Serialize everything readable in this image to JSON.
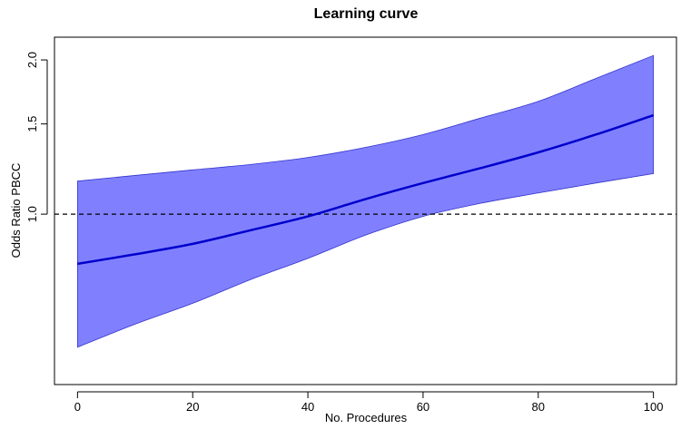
{
  "chart_data": {
    "type": "line",
    "title": "Learning curve",
    "xlabel": "No. Procedures",
    "ylabel": "Odds Ratio PBCC",
    "xlim": [
      -4,
      104
    ],
    "ylim": [
      0.465,
      2.215
    ],
    "y_scale": "log",
    "x_ticks": [
      0,
      20,
      40,
      60,
      80,
      100
    ],
    "x_tick_labels": [
      "0",
      "20",
      "40",
      "60",
      "80",
      "100"
    ],
    "y_ticks": [
      1.0,
      1.5,
      2.0
    ],
    "y_tick_labels": [
      "1.0",
      "1.5",
      "2.0"
    ],
    "reference_line": {
      "y": 1.0,
      "style": "dashed"
    },
    "grid": false,
    "legend": "none",
    "series": [
      {
        "kind": "band",
        "color": "#8080FF",
        "x": [
          0,
          10,
          20,
          30,
          40,
          50,
          60,
          70,
          80,
          90,
          100
        ],
        "lower": [
          0.55,
          0.61,
          0.67,
          0.745,
          0.82,
          0.91,
          0.99,
          1.05,
          1.1,
          1.15,
          1.2
        ],
        "upper": [
          1.16,
          1.19,
          1.22,
          1.25,
          1.29,
          1.35,
          1.43,
          1.54,
          1.66,
          1.84,
          2.04
        ]
      },
      {
        "kind": "line",
        "color": "#0000CC",
        "x": [
          0,
          10,
          20,
          30,
          40,
          50,
          60,
          70,
          80,
          90,
          100
        ],
        "y": [
          0.8,
          0.835,
          0.875,
          0.93,
          0.99,
          1.07,
          1.15,
          1.23,
          1.32,
          1.43,
          1.56
        ]
      }
    ]
  }
}
